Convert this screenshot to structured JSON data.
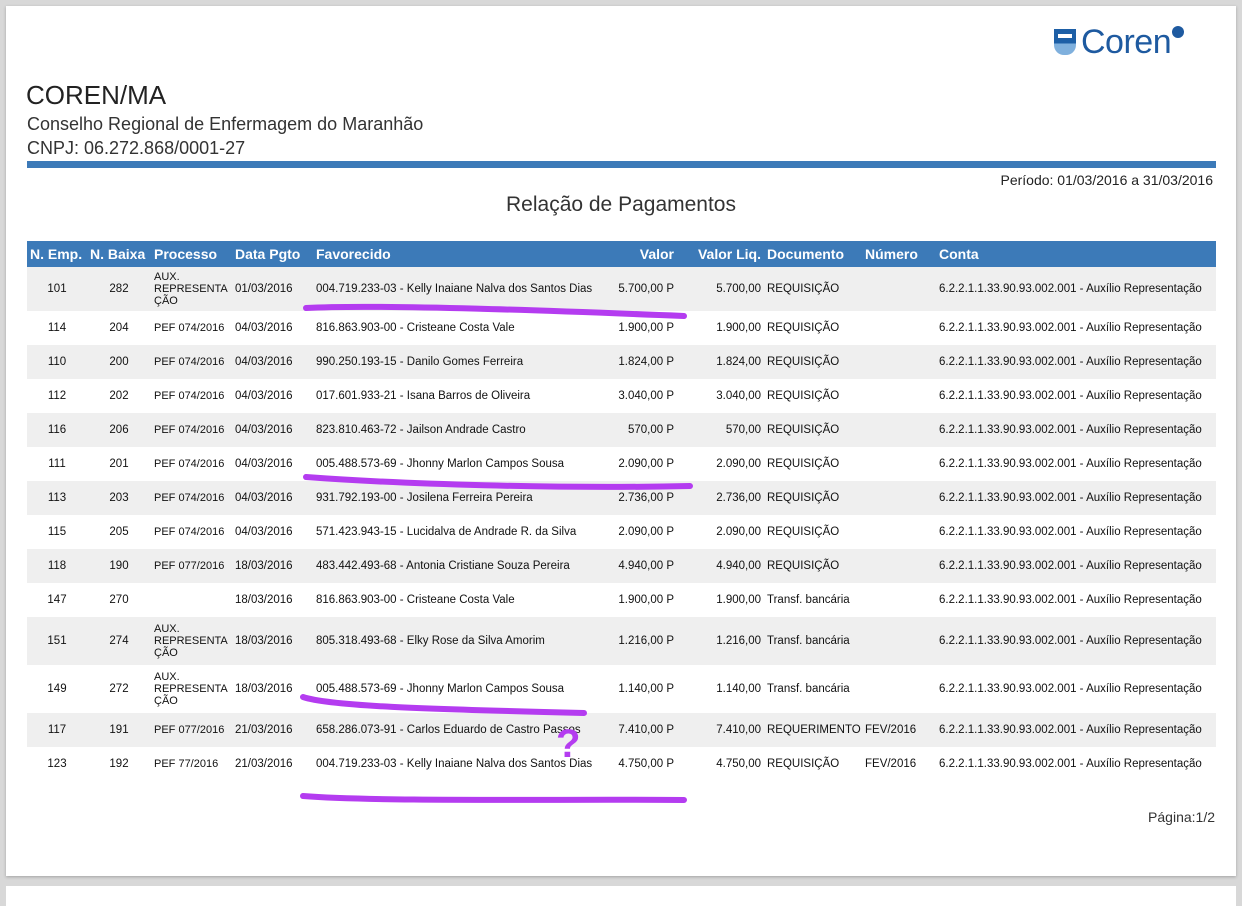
{
  "header": {
    "logo_text": "Coren",
    "org_short": "COREN/MA",
    "org_name": "Conselho Regional de Enfermagem do Maranhão",
    "cnpj": "CNPJ: 06.272.868/0001-27",
    "periodo": "Período: 01/03/2016 a 31/03/2016",
    "title": "Relação de Pagamentos"
  },
  "table": {
    "columns": [
      "N. Emp.",
      "N. Baixa",
      "Processo",
      "Data Pgto",
      "Favorecido",
      "Valor",
      "Valor Liq.",
      "Documento",
      "Número",
      "Conta"
    ],
    "rows": [
      [
        "101",
        "282",
        "AUX. REPRESENTA ÇÃO",
        "01/03/2016",
        "004.719.233-03 - Kelly Inaiane Nalva dos Santos Dias",
        "5.700,00 P",
        "5.700,00",
        "REQUISIÇÃO",
        "",
        "6.2.2.1.1.33.90.93.002.001 - Auxílio Representação"
      ],
      [
        "114",
        "204",
        "PEF 074/2016",
        "04/03/2016",
        "816.863.903-00 - Cristeane Costa Vale",
        "1.900,00 P",
        "1.900,00",
        "REQUISIÇÃO",
        "",
        "6.2.2.1.1.33.90.93.002.001 - Auxílio Representação"
      ],
      [
        "110",
        "200",
        "PEF 074/2016",
        "04/03/2016",
        "990.250.193-15 - Danilo Gomes Ferreira",
        "1.824,00 P",
        "1.824,00",
        "REQUISIÇÃO",
        "",
        "6.2.2.1.1.33.90.93.002.001 - Auxílio Representação"
      ],
      [
        "112",
        "202",
        "PEF 074/2016",
        "04/03/2016",
        "017.601.933-21 - Isana Barros de Oliveira",
        "3.040,00 P",
        "3.040,00",
        "REQUISIÇÃO",
        "",
        "6.2.2.1.1.33.90.93.002.001 - Auxílio Representação"
      ],
      [
        "116",
        "206",
        "PEF 074/2016",
        "04/03/2016",
        "823.810.463-72 - Jailson Andrade Castro",
        "570,00 P",
        "570,00",
        "REQUISIÇÃO",
        "",
        "6.2.2.1.1.33.90.93.002.001 - Auxílio Representação"
      ],
      [
        "111",
        "201",
        "PEF 074/2016",
        "04/03/2016",
        "005.488.573-69 - Jhonny Marlon Campos Sousa",
        "2.090,00 P",
        "2.090,00",
        "REQUISIÇÃO",
        "",
        "6.2.2.1.1.33.90.93.002.001 - Auxílio Representação"
      ],
      [
        "113",
        "203",
        "PEF 074/2016",
        "04/03/2016",
        "931.792.193-00 - Josilena Ferreira Pereira",
        "2.736,00 P",
        "2.736,00",
        "REQUISIÇÃO",
        "",
        "6.2.2.1.1.33.90.93.002.001 - Auxílio Representação"
      ],
      [
        "115",
        "205",
        "PEF 074/2016",
        "04/03/2016",
        "571.423.943-15 - Lucidalva de Andrade R. da Silva",
        "2.090,00 P",
        "2.090,00",
        "REQUISIÇÃO",
        "",
        "6.2.2.1.1.33.90.93.002.001 - Auxílio Representação"
      ],
      [
        "118",
        "190",
        "PEF 077/2016",
        "18/03/2016",
        "483.442.493-68 - Antonia Cristiane Souza Pereira",
        "4.940,00 P",
        "4.940,00",
        "REQUISIÇÃO",
        "",
        "6.2.2.1.1.33.90.93.002.001 - Auxílio Representação"
      ],
      [
        "147",
        "270",
        "",
        "18/03/2016",
        "816.863.903-00 - Cristeane Costa Vale",
        "1.900,00 P",
        "1.900,00",
        "Transf. bancária",
        "",
        "6.2.2.1.1.33.90.93.002.001 - Auxílio Representação"
      ],
      [
        "151",
        "274",
        "AUX. REPRESENTA ÇÃO",
        "18/03/2016",
        "805.318.493-68 - Elky Rose da Silva Amorim",
        "1.216,00 P",
        "1.216,00",
        "Transf. bancária",
        "",
        "6.2.2.1.1.33.90.93.002.001 - Auxílio Representação"
      ],
      [
        "149",
        "272",
        "AUX. REPRESENTA ÇÃO",
        "18/03/2016",
        "005.488.573-69 - Jhonny Marlon Campos Sousa",
        "1.140,00 P",
        "1.140,00",
        "Transf. bancária",
        "",
        "6.2.2.1.1.33.90.93.002.001 - Auxílio Representação"
      ],
      [
        "117",
        "191",
        "PEF 077/2016",
        "21/03/2016",
        "658.286.073-91 - Carlos Eduardo de Castro Passos",
        "7.410,00 P",
        "7.410,00",
        "REQUERIMENTO",
        "FEV/2016",
        "6.2.2.1.1.33.90.93.002.001 - Auxílio Representação"
      ],
      [
        "123",
        "192",
        "PEF 77/2016",
        "21/03/2016",
        "004.719.233-03 - Kelly Inaiane Nalva dos Santos Dias",
        "4.750,00 P",
        "4.750,00",
        "REQUISIÇÃO",
        "FEV/2016",
        "6.2.2.1.1.33.90.93.002.001 - Auxílio Representação"
      ]
    ]
  },
  "footer": {
    "pagina": "Página:1/2"
  },
  "annotations": {
    "question_mark": "?",
    "marker_color": "#b43cf0"
  }
}
